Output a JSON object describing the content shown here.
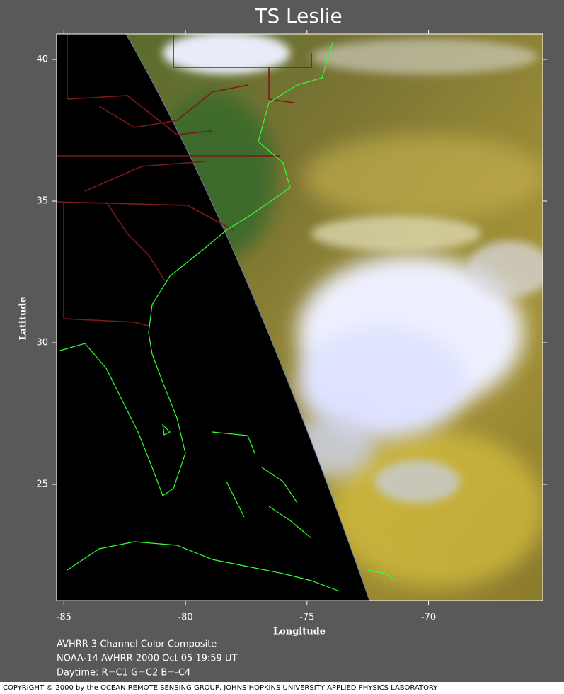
{
  "title": "TS Leslie",
  "x_label": "Longitude",
  "y_label": "Latitude",
  "xlim": [
    -85.3,
    -65.3
  ],
  "ylim": [
    20.9,
    40.9
  ],
  "xticks": [
    -85,
    -80,
    -75,
    -70
  ],
  "yticks": [
    40,
    35,
    30,
    25
  ],
  "captions": [
    "AVHRR 3 Channel Color Composite",
    "NOAA-14 AVHRR 2000 Oct 05 19:59 UT",
    "Daytime: R=C1 G=C2 B=-C4"
  ],
  "copyright": "COPYRIGHT © 2000 by the OCEAN REMOTE SENSING GROUP, JOHNS HOPKINS UNIVERSITY APPLIED PHYSICS LABORATORY"
}
